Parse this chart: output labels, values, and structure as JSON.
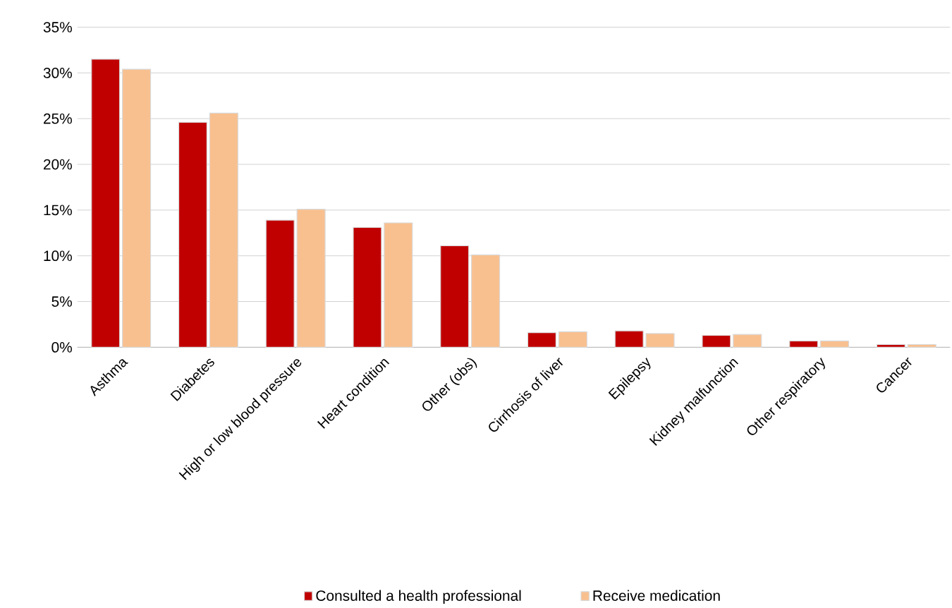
{
  "chart_data": {
    "type": "bar",
    "categories": [
      "Asthma",
      "Diabetes",
      "High or low blood pressure",
      "Heart condition",
      "Other (obs)",
      "Cirrhosis of liver",
      "Epilepsy",
      "Kidney malfunction",
      "Other respiratory",
      "Cancer"
    ],
    "series": [
      {
        "name": "Consulted a health professional",
        "color": "#c00000",
        "values": [
          31.5,
          24.6,
          13.9,
          13.1,
          11.1,
          1.6,
          1.8,
          1.3,
          0.7,
          0.3
        ]
      },
      {
        "name": "Receive medication",
        "color": "#f9c08f",
        "values": [
          30.4,
          25.6,
          15.1,
          13.6,
          10.1,
          1.7,
          1.5,
          1.4,
          0.7,
          0.3
        ]
      }
    ],
    "ylim": [
      0,
      35
    ],
    "yticks": [
      {
        "value": 0,
        "label": "0%"
      },
      {
        "value": 5,
        "label": "5%"
      },
      {
        "value": 10,
        "label": "10%"
      },
      {
        "value": 15,
        "label": "15%"
      },
      {
        "value": 20,
        "label": "20%"
      },
      {
        "value": 25,
        "label": "25%"
      },
      {
        "value": 30,
        "label": "30%"
      },
      {
        "value": 35,
        "label": "35%"
      }
    ],
    "grid": "y",
    "legend": "bottom"
  }
}
